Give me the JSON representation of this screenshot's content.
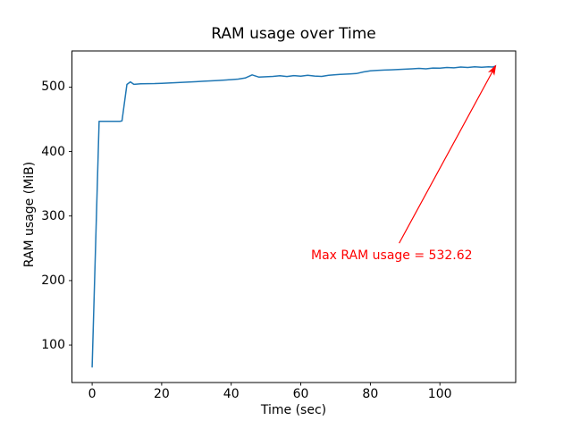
{
  "chart_data": {
    "type": "line",
    "title": "RAM usage over Time",
    "xlabel": "Time (sec)",
    "ylabel": "RAM usage (MiB)",
    "xlim": [
      -5.8,
      121.8
    ],
    "ylim": [
      41.9,
      556.0
    ],
    "xticks": [
      0,
      20,
      40,
      60,
      80,
      100
    ],
    "yticks": [
      100,
      200,
      300,
      400,
      500
    ],
    "grid": false,
    "legend": "none",
    "line_color": "#1f77b4",
    "axis_color": "#000000",
    "background_color": "#ffffff",
    "max_value": 532.62,
    "series": [
      {
        "name": "RAM usage",
        "points": [
          [
            0,
            66
          ],
          [
            2,
            447
          ],
          [
            4,
            447
          ],
          [
            6,
            447
          ],
          [
            8,
            447
          ],
          [
            8.6,
            447.5
          ],
          [
            10,
            504
          ],
          [
            11,
            508
          ],
          [
            12,
            504.2
          ],
          [
            14,
            505
          ],
          [
            16,
            505.3
          ],
          [
            18,
            505.4
          ],
          [
            20,
            505.8
          ],
          [
            22,
            506.3
          ],
          [
            24,
            506.8
          ],
          [
            26,
            507.3
          ],
          [
            28,
            507.8
          ],
          [
            30,
            508.4
          ],
          [
            32,
            509
          ],
          [
            34,
            509.6
          ],
          [
            36,
            510.2
          ],
          [
            38,
            510.8
          ],
          [
            40,
            511.5
          ],
          [
            42,
            512.3
          ],
          [
            44,
            514
          ],
          [
            46,
            518.8
          ],
          [
            48,
            515.4
          ],
          [
            50,
            516
          ],
          [
            52,
            516.5
          ],
          [
            54,
            517.5
          ],
          [
            56,
            516.3
          ],
          [
            58,
            517.8
          ],
          [
            60,
            516.8
          ],
          [
            62,
            518.2
          ],
          [
            64,
            517
          ],
          [
            66,
            516.5
          ],
          [
            68,
            518.3
          ],
          [
            70,
            519.2
          ],
          [
            72,
            519.8
          ],
          [
            74,
            520.4
          ],
          [
            76,
            521
          ],
          [
            78,
            523.5
          ],
          [
            80,
            525.3
          ],
          [
            82,
            525.8
          ],
          [
            84,
            526.3
          ],
          [
            86,
            526.8
          ],
          [
            88,
            527.3
          ],
          [
            90,
            527.7
          ],
          [
            92,
            528.3
          ],
          [
            94,
            529
          ],
          [
            96,
            528.3
          ],
          [
            98,
            529.6
          ],
          [
            100,
            529.2
          ],
          [
            102,
            530.4
          ],
          [
            104,
            529.8
          ],
          [
            106,
            531
          ],
          [
            108,
            530.4
          ],
          [
            110,
            531.3
          ],
          [
            112,
            530.8
          ],
          [
            114,
            531.5
          ],
          [
            115.2,
            531.1
          ],
          [
            116,
            532.62
          ]
        ]
      }
    ],
    "annotation": {
      "text": "Max RAM usage = 532.62",
      "color": "#ff0000",
      "arrow_tip": [
        116,
        532.62
      ],
      "arrow_tail": [
        88.3,
        258
      ],
      "text_pos": [
        63,
        249
      ]
    }
  }
}
